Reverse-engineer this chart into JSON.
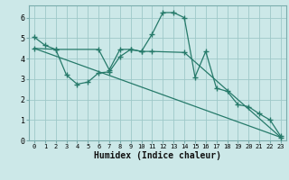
{
  "xlabel": "Humidex (Indice chaleur)",
  "bg_color": "#cce8e8",
  "grid_color": "#9ec8c8",
  "line_color": "#267a6a",
  "xlim": [
    -0.5,
    23.5
  ],
  "ylim": [
    0,
    6.6
  ],
  "yticks": [
    0,
    1,
    2,
    3,
    4,
    5,
    6
  ],
  "xticks": [
    0,
    1,
    2,
    3,
    4,
    5,
    6,
    7,
    8,
    9,
    10,
    11,
    12,
    13,
    14,
    15,
    16,
    17,
    18,
    19,
    20,
    21,
    22,
    23
  ],
  "line1_x": [
    0,
    1,
    2,
    3,
    4,
    5,
    6,
    7,
    8,
    9,
    10,
    11,
    12,
    13,
    14,
    15,
    16,
    17,
    18,
    19,
    20,
    21,
    22,
    23
  ],
  "line1_y": [
    5.05,
    4.65,
    4.45,
    3.2,
    2.75,
    2.85,
    3.3,
    3.35,
    4.1,
    4.45,
    4.35,
    5.2,
    6.25,
    6.25,
    6.0,
    3.1,
    4.35,
    2.55,
    2.4,
    1.75,
    1.65,
    1.3,
    1.0,
    0.2
  ],
  "line2_x": [
    0,
    2,
    6,
    7,
    8,
    9,
    10,
    11,
    14,
    23
  ],
  "line2_y": [
    4.5,
    4.45,
    4.45,
    3.45,
    4.45,
    4.45,
    4.35,
    4.35,
    4.3,
    0.15
  ],
  "line3_x": [
    0,
    23
  ],
  "line3_y": [
    4.5,
    0.15
  ]
}
